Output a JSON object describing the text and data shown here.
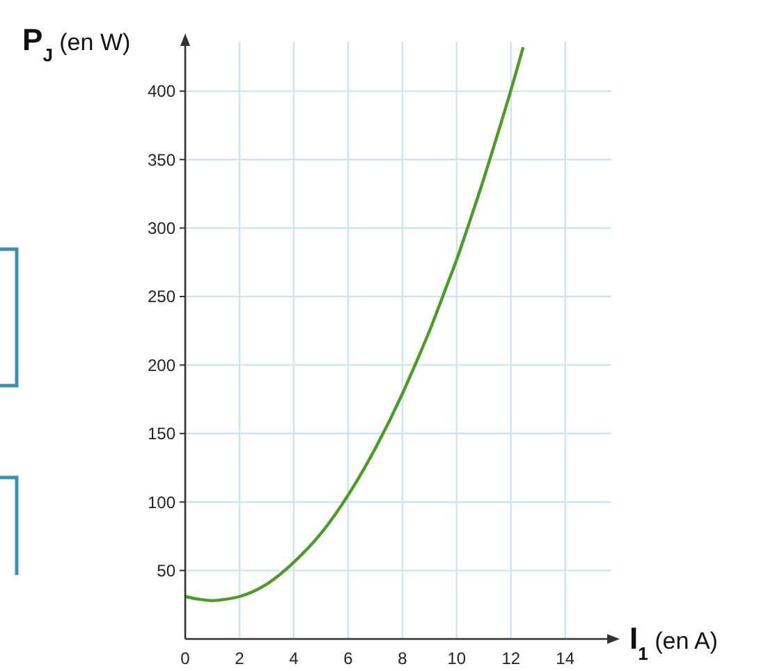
{
  "chart_data": {
    "type": "line",
    "xlabel": "I$_{1}$ (en A)",
    "ylabel": "P$_{J}$ (en W)",
    "xlim": [
      0,
      15.7
    ],
    "ylim": [
      0,
      436
    ],
    "xticks": [
      0,
      2,
      4,
      6,
      8,
      10,
      12,
      14
    ],
    "yticks": [
      50,
      100,
      150,
      200,
      250,
      300,
      350,
      400
    ],
    "grid": true,
    "marker": "none",
    "line_style": "solid",
    "series": [
      {
        "color": "#4c9a2a",
        "x": [
          0,
          0.5,
          1,
          1.5,
          2,
          3,
          4,
          5,
          6,
          7,
          8,
          8.4,
          9,
          9.6,
          10,
          10.5,
          11,
          11.5,
          11.9,
          12.45
        ],
        "values": [
          31,
          29,
          28,
          29,
          31,
          40,
          56,
          77,
          105,
          139,
          179,
          197,
          225,
          256,
          277,
          306,
          336,
          368,
          394,
          432
        ]
      }
    ]
  }
}
